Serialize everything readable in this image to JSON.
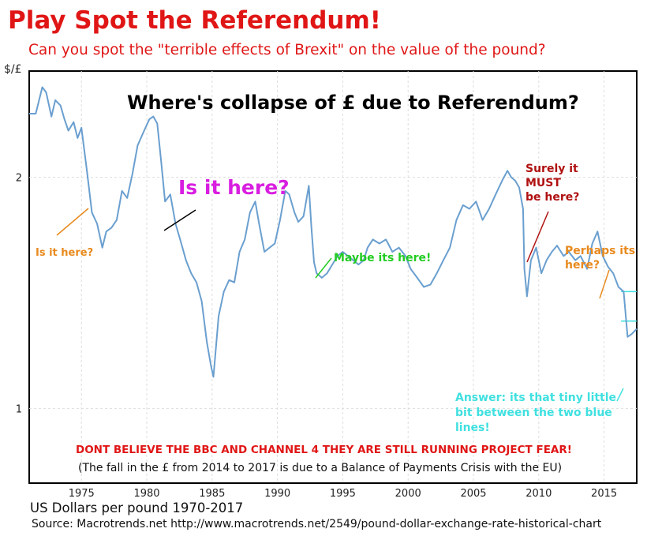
{
  "header": {
    "title": "Play Spot the Referendum!",
    "subtitle": "Can you spot the \"terrible effects of Brexit\" on the value of the pound?"
  },
  "footer": {
    "caption": "US Dollars per pound 1970-2017",
    "source": "Source: Macrotrends.net  http://www.macrotrends.net/2549/pound-dollar-exchange-rate-historical-chart"
  },
  "annotations": {
    "headline": "Where's collapse of £ due to Referendum?",
    "is_it_here_big": "Is it here?",
    "is_it_here_small": "Is it here?",
    "maybe": "Maybe its here!",
    "surely": [
      "Surely it",
      "MUST",
      "be here?"
    ],
    "perhaps": [
      "Perhaps its",
      "here?"
    ],
    "answer": [
      "Answer: its that tiny little",
      "bit between the two blue",
      "lines!"
    ],
    "bbc": "DONT BELIEVE THE BBC AND CHANNEL 4 THEY ARE STILL RUNNING PROJECT FEAR!",
    "note": "(The fall in the £ from 2014 to 2017 is due to a Balance of Payments Crisis with the EU)"
  },
  "colors": {
    "line": "#6a9fcf",
    "red": "#e01616",
    "orange": "#e88a1e",
    "magenta": "#d81ee0",
    "green": "#22cc22",
    "darkred": "#b01010",
    "cyan": "#40e0e0"
  },
  "chart_data": {
    "type": "line",
    "title": "Where's collapse of £ due to Referendum?",
    "xlabel": "US Dollars per pound 1970-2017",
    "ylabel": "$/£",
    "yscale": "log",
    "ylim": [
      0.8,
      2.75
    ],
    "xlim": [
      1971,
      2017.5
    ],
    "yticks": [
      1,
      2
    ],
    "xticks": [
      1975,
      1980,
      1985,
      1990,
      1995,
      2000,
      2005,
      2010,
      2015
    ],
    "grid": true,
    "series": [
      {
        "x": [
          1971.0,
          1971.5,
          1972.0,
          1972.3,
          1972.7,
          1973.0,
          1973.4,
          1973.7,
          1974.0,
          1974.4,
          1974.7,
          1975.0,
          1975.4,
          1975.8,
          1976.2,
          1976.6,
          1976.9,
          1977.3,
          1977.7,
          1978.1,
          1978.5,
          1978.9,
          1979.3,
          1979.8,
          1980.2,
          1980.5,
          1980.8,
          1981.1,
          1981.4,
          1981.8,
          1982.2,
          1982.6,
          1983.0,
          1983.4,
          1983.8,
          1984.2,
          1984.6,
          1984.9,
          1985.1,
          1985.5,
          1985.9,
          1986.3,
          1986.7,
          1987.1,
          1987.5,
          1987.9,
          1988.3,
          1988.6,
          1989.0,
          1989.4,
          1989.8,
          1990.2,
          1990.6,
          1990.9,
          1991.3,
          1991.6,
          1992.0,
          1992.4,
          1992.6,
          1992.8,
          1993.0,
          1993.4,
          1993.8,
          1994.2,
          1994.6,
          1995.0,
          1995.4,
          1995.8,
          1996.2,
          1996.6,
          1996.9,
          1997.3,
          1997.8,
          1998.3,
          1998.8,
          1999.3,
          1999.8,
          2000.2,
          2000.7,
          2001.2,
          2001.7,
          2002.2,
          2002.7,
          2003.2,
          2003.7,
          2004.2,
          2004.7,
          2005.2,
          2005.7,
          2006.2,
          2006.7,
          2007.2,
          2007.6,
          2007.9,
          2008.2,
          2008.5,
          2008.8,
          2008.9,
          2009.1,
          2009.4,
          2009.8,
          2010.2,
          2010.6,
          2011.0,
          2011.4,
          2011.9,
          2012.3,
          2012.8,
          2013.2,
          2013.7,
          2014.1,
          2014.5,
          2014.9,
          2015.3,
          2015.7,
          2016.1,
          2016.5,
          2016.8,
          2017.1,
          2017.5
        ],
        "values": [
          2.42,
          2.42,
          2.62,
          2.58,
          2.4,
          2.52,
          2.48,
          2.38,
          2.3,
          2.36,
          2.25,
          2.32,
          2.05,
          1.8,
          1.74,
          1.62,
          1.7,
          1.72,
          1.76,
          1.92,
          1.88,
          2.02,
          2.2,
          2.3,
          2.38,
          2.4,
          2.35,
          2.1,
          1.86,
          1.9,
          1.74,
          1.65,
          1.56,
          1.5,
          1.46,
          1.38,
          1.22,
          1.14,
          1.1,
          1.32,
          1.42,
          1.47,
          1.46,
          1.6,
          1.66,
          1.8,
          1.86,
          1.74,
          1.6,
          1.62,
          1.64,
          1.76,
          1.92,
          1.9,
          1.8,
          1.75,
          1.78,
          1.95,
          1.72,
          1.55,
          1.5,
          1.48,
          1.5,
          1.54,
          1.58,
          1.6,
          1.58,
          1.56,
          1.54,
          1.56,
          1.62,
          1.66,
          1.64,
          1.66,
          1.6,
          1.62,
          1.58,
          1.52,
          1.48,
          1.44,
          1.45,
          1.5,
          1.56,
          1.62,
          1.76,
          1.84,
          1.82,
          1.86,
          1.76,
          1.82,
          1.9,
          1.98,
          2.04,
          2.0,
          1.98,
          1.94,
          1.82,
          1.52,
          1.4,
          1.56,
          1.62,
          1.5,
          1.56,
          1.6,
          1.63,
          1.58,
          1.6,
          1.56,
          1.58,
          1.52,
          1.64,
          1.7,
          1.58,
          1.53,
          1.5,
          1.44,
          1.42,
          1.24,
          1.25,
          1.27
        ]
      }
    ],
    "reference_lines": [
      1.42,
      1.3
    ]
  }
}
